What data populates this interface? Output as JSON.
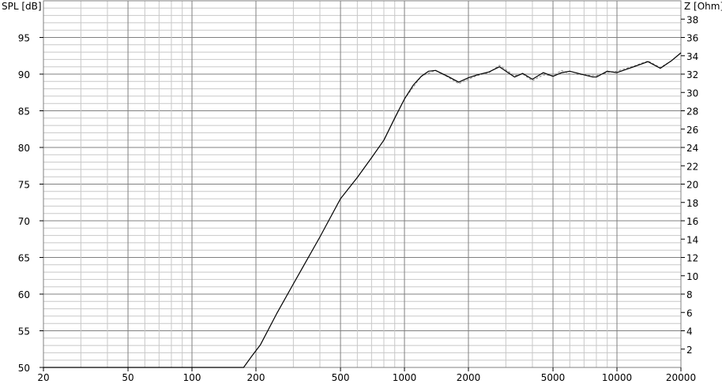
{
  "chart_data": {
    "type": "line",
    "xlabel": "",
    "ylabel": "SPL [dB]",
    "y2label": "Z [Ohm]",
    "xscale": "log",
    "xlim": [
      20,
      20000
    ],
    "ylim": [
      50,
      100
    ],
    "y2lim": [
      0,
      40
    ],
    "grid": true,
    "x_ticks": [
      20,
      50,
      100,
      200,
      500,
      1000,
      2000,
      5000,
      10000,
      20000
    ],
    "y_ticks": [
      50,
      55,
      60,
      65,
      70,
      75,
      80,
      85,
      90,
      95
    ],
    "y2_ticks": [
      2,
      4,
      6,
      8,
      10,
      12,
      14,
      16,
      18,
      20,
      22,
      24,
      26,
      28,
      30,
      32,
      34,
      36,
      38
    ],
    "series": [
      {
        "color": "#000000",
        "style": "solid",
        "x": [
          20,
          100,
          175,
          193,
          210,
          250,
          300,
          400,
          500,
          600,
          700,
          800,
          900,
          1000,
          1100,
          1200,
          1300,
          1400,
          1600,
          1800,
          2000,
          2200,
          2500,
          2800,
          3000,
          3300,
          3600,
          4000,
          4500,
          5000,
          5500,
          6000,
          7000,
          7700,
          8000,
          9000,
          10000,
          12000,
          14000,
          16000,
          18000,
          20000
        ],
        "y": [
          50,
          50,
          50,
          51.7,
          53.1,
          57.3,
          61.4,
          67.8,
          73,
          75.9,
          78.6,
          81,
          84,
          86.6,
          88.5,
          89.7,
          90.4,
          90.5,
          89.7,
          88.9,
          89.5,
          89.9,
          90.3,
          91.0,
          90.4,
          89.6,
          90.1,
          89.3,
          90.2,
          89.7,
          90.2,
          90.4,
          89.9,
          89.6,
          89.6,
          90.4,
          90.2,
          91.0,
          91.7,
          90.8,
          91.8,
          92.9
        ]
      },
      {
        "color": "#888888",
        "style": "dashed",
        "x": [
          1000,
          1200,
          1400,
          1600,
          1800,
          2000,
          2200,
          2500,
          2800,
          3000,
          3300,
          3600,
          4000,
          4500,
          5000,
          5500,
          6000,
          7000,
          7700,
          8000,
          9000,
          10000,
          12000,
          14000,
          16000,
          18000,
          20000
        ],
        "y": [
          86.6,
          89.7,
          90.5,
          89.6,
          88.7,
          89.3,
          89.8,
          90.2,
          91.2,
          90.6,
          89.8,
          90.0,
          89.1,
          89.9,
          89.8,
          90.5,
          90.0,
          89.9,
          89.8,
          89.8,
          90.2,
          90.4,
          91.1,
          91.8,
          90.9,
          91.8,
          92.9
        ]
      }
    ]
  }
}
